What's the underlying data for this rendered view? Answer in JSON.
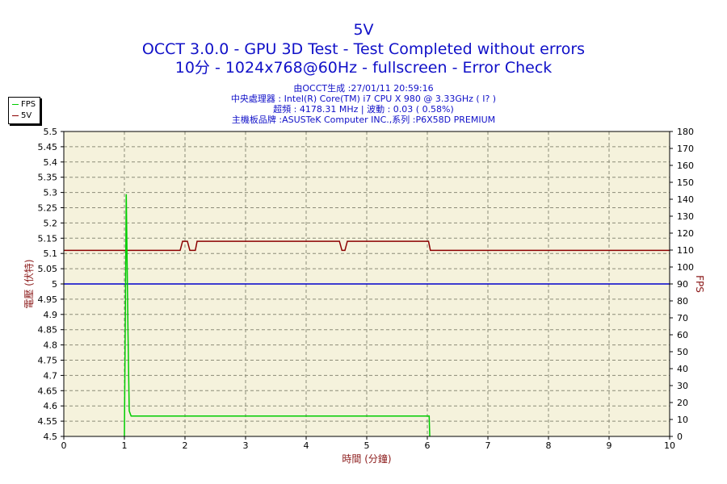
{
  "titles": {
    "line1": "5V",
    "line2": "OCCT 3.0.0 - GPU 3D Test - Test Completed without errors",
    "line3": "10分 - 1024x768@60Hz - fullscreen - Error Check",
    "sub1": "由OCCT生成 :27/01/11 20:59:16",
    "sub2": "中央處理器 : Intel(R) Core(TM) i7 CPU X 980 @ 3.33GHz (  I? )",
    "sub3": "超頻 : 4178.31 MHz | 波動 : 0.03 ( 0.58%)",
    "sub4": "主機板品牌 :ASUSTeK Computer INC.,系列 :P6X58D PREMIUM"
  },
  "legend": [
    {
      "label": "FPS",
      "color": "#00cc00"
    },
    {
      "label": "5V",
      "color": "#8b0000"
    }
  ],
  "chart_data": {
    "type": "line",
    "xlabel": "時間 (分鐘)",
    "ylabel": "電壓 (伏特)",
    "y2label": "FPS",
    "xlim": [
      0,
      10
    ],
    "ylim": [
      4.5,
      5.5
    ],
    "y2lim": [
      0,
      180
    ],
    "xticks": [
      0,
      1,
      2,
      3,
      4,
      5,
      6,
      7,
      8,
      9,
      10
    ],
    "yticks": [
      "5.5",
      "5.45",
      "5.4",
      "5.35",
      "5.3",
      "5.25",
      "5.2",
      "5.15",
      "5.1",
      "5.05",
      "5",
      "4.95",
      "4.9",
      "4.85",
      "4.8",
      "4.75",
      "4.7",
      "4.65",
      "4.6",
      "4.55",
      "4.5"
    ],
    "y2ticks": [
      180,
      170,
      160,
      150,
      140,
      130,
      120,
      110,
      100,
      90,
      80,
      70,
      60,
      50,
      40,
      30,
      20,
      10,
      0
    ],
    "reference_line": {
      "y": 5.0,
      "color": "#0000cc"
    },
    "background": "#f5f2dc",
    "grid": true,
    "legend_position": "top-left",
    "series": [
      {
        "name": "5V",
        "axis": "left",
        "color": "#8b0000",
        "x": [
          0,
          1.92,
          1.96,
          2.04,
          2.08,
          2.11,
          2.17,
          2.2,
          4.55,
          4.59,
          4.64,
          4.68,
          6.02,
          6.05,
          10
        ],
        "y": [
          5.11,
          5.11,
          5.14,
          5.14,
          5.11,
          5.11,
          5.11,
          5.14,
          5.14,
          5.11,
          5.11,
          5.14,
          5.14,
          5.11,
          5.11
        ]
      },
      {
        "name": "FPS",
        "axis": "right",
        "color": "#00cc00",
        "x": [
          1.0,
          1.03,
          1.06,
          1.08,
          1.11,
          6.03,
          6.04
        ],
        "y": [
          0,
          143,
          60,
          15,
          12,
          12,
          0
        ]
      }
    ]
  }
}
